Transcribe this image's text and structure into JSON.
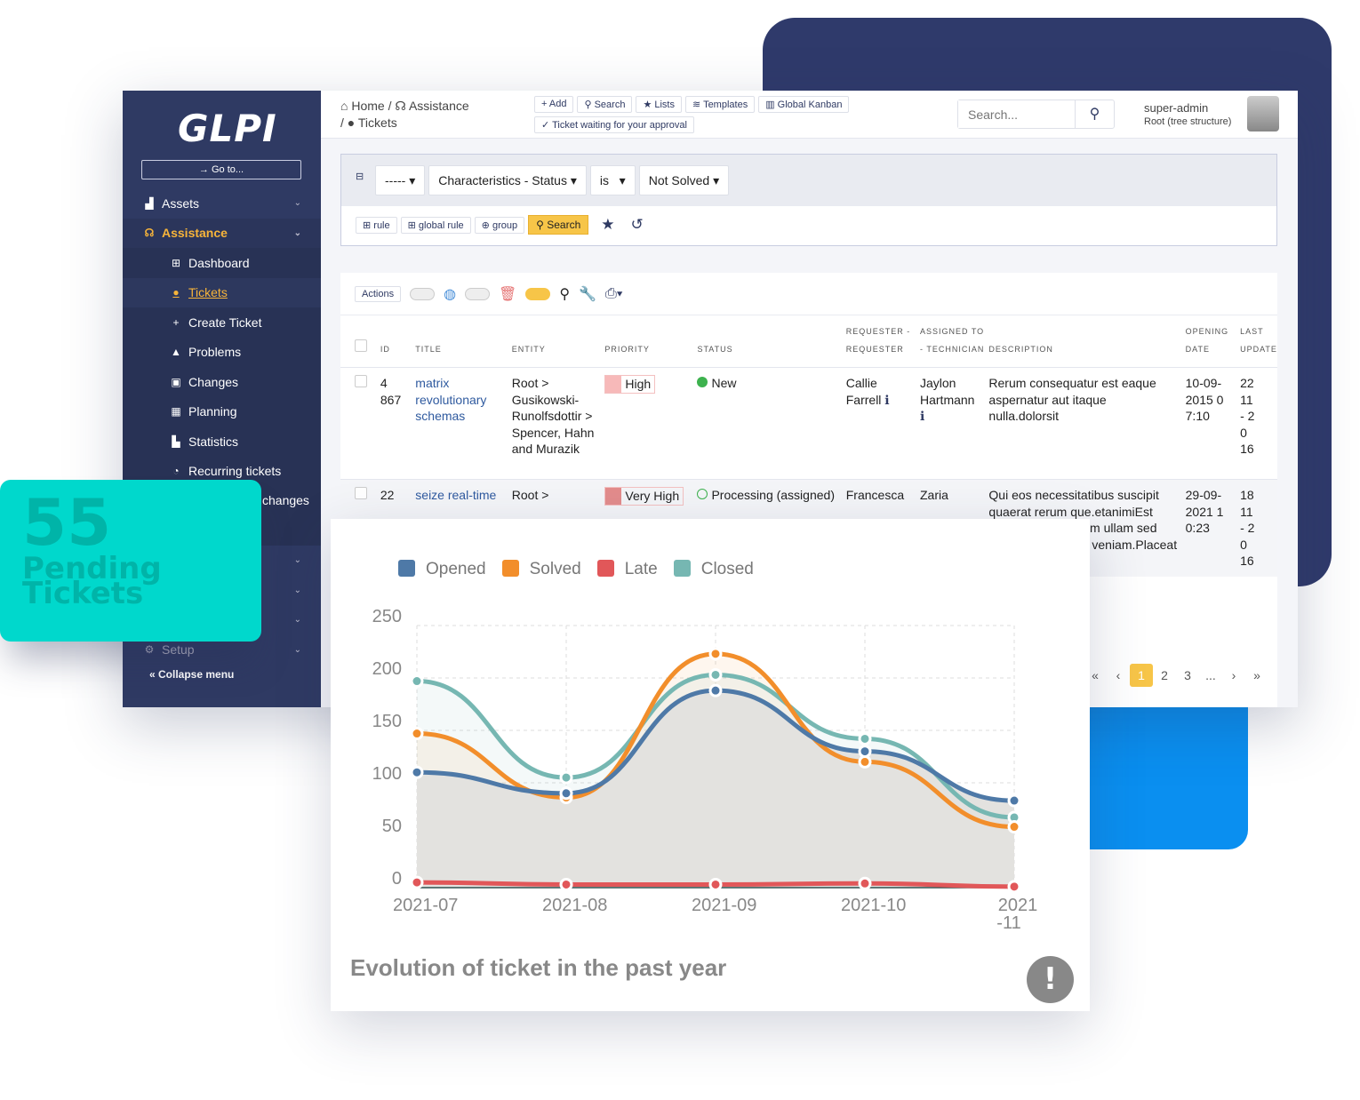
{
  "app": {
    "logo": "GLPI",
    "goto": "Go to..."
  },
  "sidebar": {
    "items": [
      {
        "label": "Assets",
        "icon": "assets-icon"
      },
      {
        "label": "Assistance",
        "icon": "headset-icon"
      },
      {
        "label": "Dashboard",
        "icon": "dashboard-icon"
      },
      {
        "label": "Tickets",
        "icon": "exclamation-icon"
      },
      {
        "label": "Create Ticket",
        "icon": "plus-icon"
      },
      {
        "label": "Problems",
        "icon": "warning-icon"
      },
      {
        "label": "Changes",
        "icon": "clipboard-check-icon"
      },
      {
        "label": "Planning",
        "icon": "calendar-icon"
      },
      {
        "label": "Statistics",
        "icon": "chart-icon"
      },
      {
        "label": "Recurring tickets",
        "icon": "stopwatch-icon"
      },
      {
        "label": "changes",
        "icon": ""
      },
      {
        "label": "Setup",
        "icon": "cogs-icon"
      }
    ],
    "collapse": "Collapse menu"
  },
  "breadcrumb": [
    "Home",
    "Assistance",
    "Tickets"
  ],
  "toolbar": {
    "add": "Add",
    "search": "Search",
    "lists": "Lists",
    "templates": "Templates",
    "kanban": "Global Kanban",
    "approval": "Ticket waiting for your approval"
  },
  "header": {
    "search_placeholder": "Search...",
    "user": "super-admin",
    "entity": "Root (tree structure)"
  },
  "criteria": {
    "link": "-----",
    "field": "Characteristics - Status",
    "op": "is",
    "value": "Not Solved",
    "rule": "rule",
    "global_rule": "global rule",
    "group": "group",
    "search": "Search"
  },
  "list": {
    "actions": "Actions",
    "headers": [
      "ID",
      "TITLE",
      "ENTITY",
      "PRIORITY",
      "STATUS",
      "REQUESTER - REQUESTER",
      "ASSIGNED TO - TECHNICIAN",
      "DESCRIPTION",
      "OPENING DATE",
      "LAST UPDATE"
    ],
    "rows": [
      {
        "id": "4 867",
        "title": "matrix revolutionary schemas",
        "entity": "Root > Gusikowski-Runolfsdottir > Spencer, Hahn and Murazik",
        "priority": "High",
        "status": "New",
        "requester": "Callie Farrell",
        "tech": "Jaylon Hartmann",
        "desc": "Rerum consequatur est eaque aspernatur aut itaque nulla.dolorsit",
        "opened": "10-09-2015 07:10",
        "updated": "22 11- 20 16"
      },
      {
        "id": "22",
        "title": "seize real-time",
        "entity": "Root >",
        "priority": "Very High",
        "status": "Processing (assigned)",
        "requester": "Francesca",
        "tech": "Zaria",
        "desc": "Qui eos necessitatibus suscipit quaerat rerum que.etanimiEst m.Voluptatem .Enim ullam sed nsequatur dolores veniam.Placeat sint esse quis",
        "opened": "29-09-2021 10:23",
        "updated": "18 11- 20 16"
      }
    ],
    "pages": [
      "1",
      "2",
      "3",
      "..."
    ]
  },
  "kpi": {
    "value": "55",
    "label1": "Pending",
    "label2": "Tickets"
  },
  "chart_data": {
    "type": "line",
    "title": "Evolution of ticket in the past year",
    "categories": [
      "2021-07",
      "2021-08",
      "2021-09",
      "2021-10",
      "2021-11"
    ],
    "ylim": [
      0,
      250
    ],
    "yticks": [
      0,
      50,
      100,
      150,
      200,
      250
    ],
    "grid": true,
    "legend": "top",
    "series": [
      {
        "name": "Opened",
        "color": "#4e79a7",
        "values": [
          110,
          90,
          188,
          130,
          83
        ]
      },
      {
        "name": "Solved",
        "color": "#f28e2b",
        "values": [
          147,
          86,
          223,
          120,
          58
        ]
      },
      {
        "name": "Late",
        "color": "#e15759",
        "values": [
          5,
          3,
          3,
          4,
          1
        ]
      },
      {
        "name": "Closed",
        "color": "#76b7b2",
        "values": [
          197,
          105,
          203,
          142,
          67
        ]
      }
    ]
  }
}
